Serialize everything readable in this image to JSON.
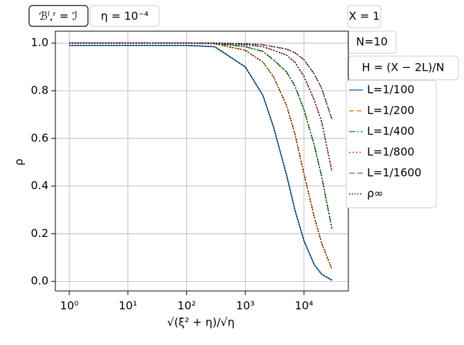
{
  "chart_data": {
    "type": "line",
    "xlabel": "√(ξ² + η)/√η",
    "ylabel": "ρ",
    "xscale": "log",
    "grid": true,
    "x": [
      1,
      10,
      100,
      300,
      1000,
      2000,
      3000,
      5000,
      7000,
      10000,
      15000,
      20000,
      30000
    ],
    "series": [
      {
        "name": "L=1/100",
        "color": "#1f77b4",
        "values": [
          0.99,
          0.99,
          0.99,
          0.985,
          0.9,
          0.78,
          0.65,
          0.45,
          0.3,
          0.17,
          0.07,
          0.03,
          0.005
        ]
      },
      {
        "name": "L=1/200",
        "color": "#ff7f0e",
        "values": [
          1,
          1,
          1,
          0.997,
          0.97,
          0.92,
          0.86,
          0.74,
          0.62,
          0.45,
          0.27,
          0.16,
          0.05
        ]
      },
      {
        "name": "L=1/400",
        "color": "#2ca02c",
        "values": [
          1,
          1,
          1,
          0.999,
          0.985,
          0.965,
          0.93,
          0.88,
          0.82,
          0.72,
          0.57,
          0.44,
          0.22
        ]
      },
      {
        "name": "L=1/800",
        "color": "#d62728",
        "values": [
          1,
          1,
          1,
          1,
          0.993,
          0.985,
          0.97,
          0.95,
          0.92,
          0.86,
          0.76,
          0.67,
          0.46
        ]
      },
      {
        "name": "L=1/1600",
        "color": "#9467bd",
        "values": [
          1,
          1,
          1,
          1,
          0.997,
          0.993,
          0.985,
          0.975,
          0.96,
          0.93,
          0.87,
          0.81,
          0.68
        ]
      }
    ],
    "overlay": {
      "name": "ρ∞",
      "color": "#000000"
    },
    "xlim": [
      0.58,
      57000
    ],
    "ylim": [
      -0.04,
      1.05
    ],
    "xticks": [
      {
        "value": 1,
        "label": "10⁰"
      },
      {
        "value": 10,
        "label": "10¹"
      },
      {
        "value": 100,
        "label": "10²"
      },
      {
        "value": 1000,
        "label": "10³"
      },
      {
        "value": 10000,
        "label": "10⁴"
      }
    ],
    "yticks": [
      {
        "value": 0,
        "label": "0.0"
      },
      0.2,
      0.4,
      0.6,
      0.8,
      {
        "value": 1,
        "label": "1.0"
      }
    ],
    "annotations": [
      "ℬˡ,ʳ = ℐ",
      "η = 10⁻⁴",
      "X = 1",
      "N=10",
      "H = (X − 2L)/N"
    ]
  }
}
